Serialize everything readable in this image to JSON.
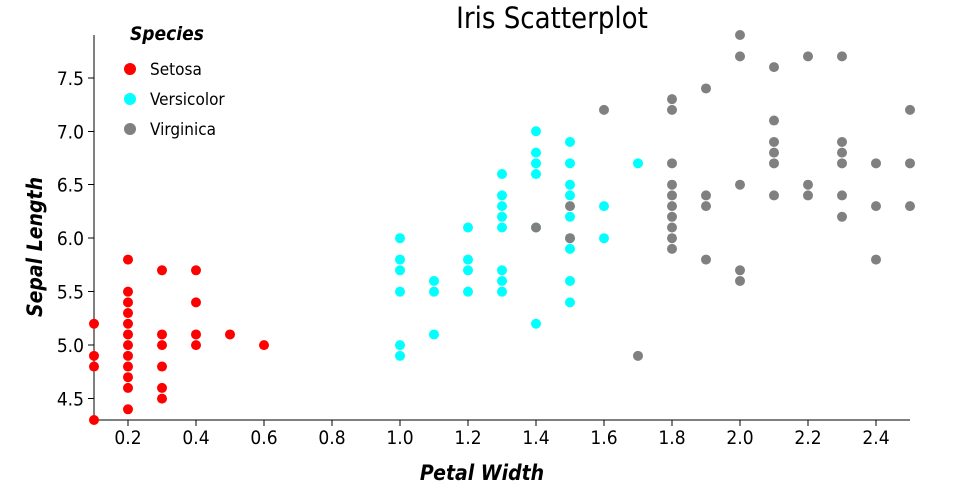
{
  "chart_data": {
    "type": "scatter",
    "title": "Iris Scatterplot",
    "xlabel": "Petal Width",
    "ylabel": "Sepal Length",
    "xlim": [
      0.1,
      2.5
    ],
    "ylim": [
      4.3,
      7.9
    ],
    "xticks": [
      "0.2",
      "0.4",
      "0.6",
      "0.8",
      "1.0",
      "1.2",
      "1.4",
      "1.6",
      "1.8",
      "2.0",
      "2.2",
      "2.4"
    ],
    "yticks": [
      "4.5",
      "5.0",
      "5.5",
      "6.0",
      "6.5",
      "7.0",
      "7.5"
    ],
    "grid": false,
    "legend": {
      "title": "Species",
      "position": "top-left"
    },
    "series": [
      {
        "name": "Setosa",
        "color": "#ff0000",
        "points": [
          [
            0.1,
            5.2
          ],
          [
            0.1,
            4.9
          ],
          [
            0.1,
            4.8
          ],
          [
            0.1,
            4.3
          ],
          [
            0.2,
            5.8
          ],
          [
            0.2,
            5.5
          ],
          [
            0.2,
            5.4
          ],
          [
            0.2,
            5.3
          ],
          [
            0.2,
            5.2
          ],
          [
            0.2,
            5.1
          ],
          [
            0.2,
            5.0
          ],
          [
            0.2,
            4.9
          ],
          [
            0.2,
            4.8
          ],
          [
            0.2,
            4.7
          ],
          [
            0.2,
            4.6
          ],
          [
            0.2,
            4.4
          ],
          [
            0.3,
            5.7
          ],
          [
            0.3,
            5.1
          ],
          [
            0.3,
            5.0
          ],
          [
            0.3,
            4.8
          ],
          [
            0.3,
            4.6
          ],
          [
            0.3,
            4.5
          ],
          [
            0.4,
            5.7
          ],
          [
            0.4,
            5.4
          ],
          [
            0.4,
            5.1
          ],
          [
            0.4,
            5.0
          ],
          [
            0.5,
            5.1
          ],
          [
            0.6,
            5.0
          ]
        ]
      },
      {
        "name": "Versicolor",
        "color": "#00ffff",
        "points": [
          [
            1.0,
            6.0
          ],
          [
            1.0,
            5.8
          ],
          [
            1.0,
            5.7
          ],
          [
            1.0,
            5.5
          ],
          [
            1.0,
            5.0
          ],
          [
            1.0,
            4.9
          ],
          [
            1.1,
            5.6
          ],
          [
            1.1,
            5.5
          ],
          [
            1.1,
            5.1
          ],
          [
            1.2,
            6.1
          ],
          [
            1.2,
            5.8
          ],
          [
            1.2,
            5.7
          ],
          [
            1.2,
            5.5
          ],
          [
            1.3,
            6.6
          ],
          [
            1.3,
            6.4
          ],
          [
            1.3,
            6.3
          ],
          [
            1.3,
            6.2
          ],
          [
            1.3,
            6.1
          ],
          [
            1.3,
            5.7
          ],
          [
            1.3,
            5.6
          ],
          [
            1.3,
            5.5
          ],
          [
            1.4,
            7.0
          ],
          [
            1.4,
            6.8
          ],
          [
            1.4,
            6.7
          ],
          [
            1.4,
            6.6
          ],
          [
            1.4,
            6.1
          ],
          [
            1.4,
            5.2
          ],
          [
            1.5,
            6.9
          ],
          [
            1.5,
            6.7
          ],
          [
            1.5,
            6.5
          ],
          [
            1.5,
            6.4
          ],
          [
            1.5,
            6.2
          ],
          [
            1.5,
            6.0
          ],
          [
            1.5,
            5.9
          ],
          [
            1.5,
            5.6
          ],
          [
            1.5,
            5.4
          ],
          [
            1.6,
            6.3
          ],
          [
            1.6,
            6.0
          ],
          [
            1.7,
            6.7
          ]
        ]
      },
      {
        "name": "Virginica",
        "color": "#808080",
        "points": [
          [
            1.4,
            6.1
          ],
          [
            1.5,
            6.3
          ],
          [
            1.5,
            6.0
          ],
          [
            1.6,
            7.2
          ],
          [
            1.7,
            4.9
          ],
          [
            1.8,
            7.3
          ],
          [
            1.8,
            7.2
          ],
          [
            1.8,
            6.7
          ],
          [
            1.8,
            6.5
          ],
          [
            1.8,
            6.4
          ],
          [
            1.8,
            6.3
          ],
          [
            1.8,
            6.2
          ],
          [
            1.8,
            6.1
          ],
          [
            1.8,
            6.0
          ],
          [
            1.8,
            5.9
          ],
          [
            1.9,
            7.4
          ],
          [
            1.9,
            6.4
          ],
          [
            1.9,
            6.3
          ],
          [
            1.9,
            5.8
          ],
          [
            2.0,
            7.9
          ],
          [
            2.0,
            7.7
          ],
          [
            2.0,
            6.5
          ],
          [
            2.0,
            5.7
          ],
          [
            2.0,
            5.6
          ],
          [
            2.1,
            7.6
          ],
          [
            2.1,
            7.1
          ],
          [
            2.1,
            6.9
          ],
          [
            2.1,
            6.8
          ],
          [
            2.1,
            6.7
          ],
          [
            2.1,
            6.4
          ],
          [
            2.2,
            7.7
          ],
          [
            2.2,
            6.5
          ],
          [
            2.2,
            6.4
          ],
          [
            2.3,
            7.7
          ],
          [
            2.3,
            6.9
          ],
          [
            2.3,
            6.8
          ],
          [
            2.3,
            6.7
          ],
          [
            2.3,
            6.4
          ],
          [
            2.3,
            6.2
          ],
          [
            2.4,
            6.7
          ],
          [
            2.4,
            6.3
          ],
          [
            2.4,
            5.8
          ],
          [
            2.5,
            7.2
          ],
          [
            2.5,
            6.7
          ],
          [
            2.5,
            6.3
          ]
        ]
      }
    ]
  }
}
